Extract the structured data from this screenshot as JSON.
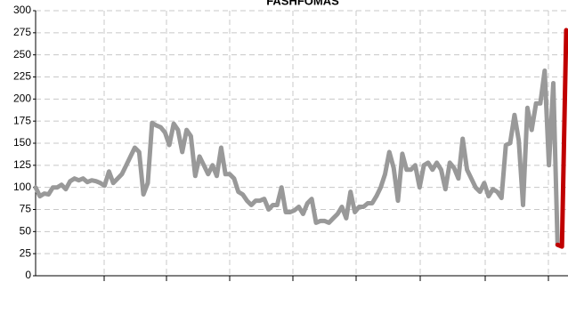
{
  "chart_data": {
    "type": "line",
    "title": "FASHFOMAS",
    "categories": [
      null,
      null,
      null,
      null,
      null,
      null,
      null,
      null,
      null,
      null,
      null,
      null,
      null,
      null,
      null,
      null,
      null,
      null,
      null,
      null,
      null,
      null,
      null,
      null,
      null,
      null,
      null,
      null,
      null,
      null,
      null,
      null,
      null,
      null,
      null,
      null,
      null,
      null,
      null,
      null,
      null,
      null,
      null,
      null,
      null,
      null,
      null,
      null,
      null,
      null,
      null,
      null,
      null,
      null,
      null,
      null,
      null,
      null,
      null,
      null,
      null,
      null,
      null,
      null,
      null,
      null,
      null,
      null,
      null,
      null,
      null,
      null,
      null,
      null,
      null,
      null,
      null,
      null,
      null,
      null,
      null,
      null,
      null,
      null,
      null,
      null,
      null,
      null,
      null,
      null,
      null,
      null,
      null,
      null,
      null,
      null,
      null,
      null,
      null,
      null,
      null,
      null,
      null,
      null,
      null,
      null,
      null,
      null,
      null,
      null,
      null,
      null,
      null,
      null,
      null,
      null,
      null,
      null,
      null,
      null,
      null,
      null,
      null,
      null
    ],
    "series": [
      {
        "color": "#999999",
        "values": [
          100,
          90,
          93,
          92,
          100,
          100,
          103,
          98,
          107,
          110,
          108,
          110,
          106,
          108,
          107,
          105,
          102,
          118,
          105,
          110,
          115,
          125,
          135,
          145,
          140,
          92,
          105,
          173,
          170,
          168,
          162,
          148,
          172,
          165,
          140,
          165,
          158,
          113,
          135,
          125,
          115,
          125,
          113,
          145,
          115,
          115,
          110,
          95,
          92,
          85,
          80,
          85,
          85,
          87,
          75,
          80,
          80,
          100,
          72,
          72,
          74,
          78,
          70,
          82,
          87,
          60,
          62,
          62,
          60,
          65,
          70,
          78,
          65,
          95,
          72,
          78,
          78,
          82,
          82,
          90,
          100,
          115,
          140,
          122,
          85,
          138,
          120,
          120,
          125,
          100,
          125,
          128,
          120,
          128,
          120,
          98,
          128,
          122,
          110,
          155,
          120,
          110,
          100,
          95,
          105,
          90,
          98,
          95,
          88,
          148,
          150,
          182,
          153,
          80,
          190,
          165,
          195,
          195,
          232,
          125,
          218,
          35,
          null,
          null
        ]
      },
      {
        "color": "#c00000",
        "values": [
          null,
          null,
          null,
          null,
          null,
          null,
          null,
          null,
          null,
          null,
          null,
          null,
          null,
          null,
          null,
          null,
          null,
          null,
          null,
          null,
          null,
          null,
          null,
          null,
          null,
          null,
          null,
          null,
          null,
          null,
          null,
          null,
          null,
          null,
          null,
          null,
          null,
          null,
          null,
          null,
          null,
          null,
          null,
          null,
          null,
          null,
          null,
          null,
          null,
          null,
          null,
          null,
          null,
          null,
          null,
          null,
          null,
          null,
          null,
          null,
          null,
          null,
          null,
          null,
          null,
          null,
          null,
          null,
          null,
          null,
          null,
          null,
          null,
          null,
          null,
          null,
          null,
          null,
          null,
          null,
          null,
          null,
          null,
          null,
          null,
          null,
          null,
          null,
          null,
          null,
          null,
          null,
          null,
          null,
          null,
          null,
          null,
          null,
          null,
          null,
          null,
          null,
          null,
          null,
          null,
          null,
          null,
          null,
          null,
          null,
          null,
          null,
          null,
          null,
          null,
          null,
          null,
          null,
          null,
          null,
          null,
          35,
          33,
          278
        ]
      }
    ],
    "ylim": [
      0,
      300
    ],
    "yticks": [
      0,
      25,
      50,
      75,
      100,
      125,
      150,
      175,
      200,
      225,
      250,
      275,
      300
    ],
    "grid": true
  }
}
